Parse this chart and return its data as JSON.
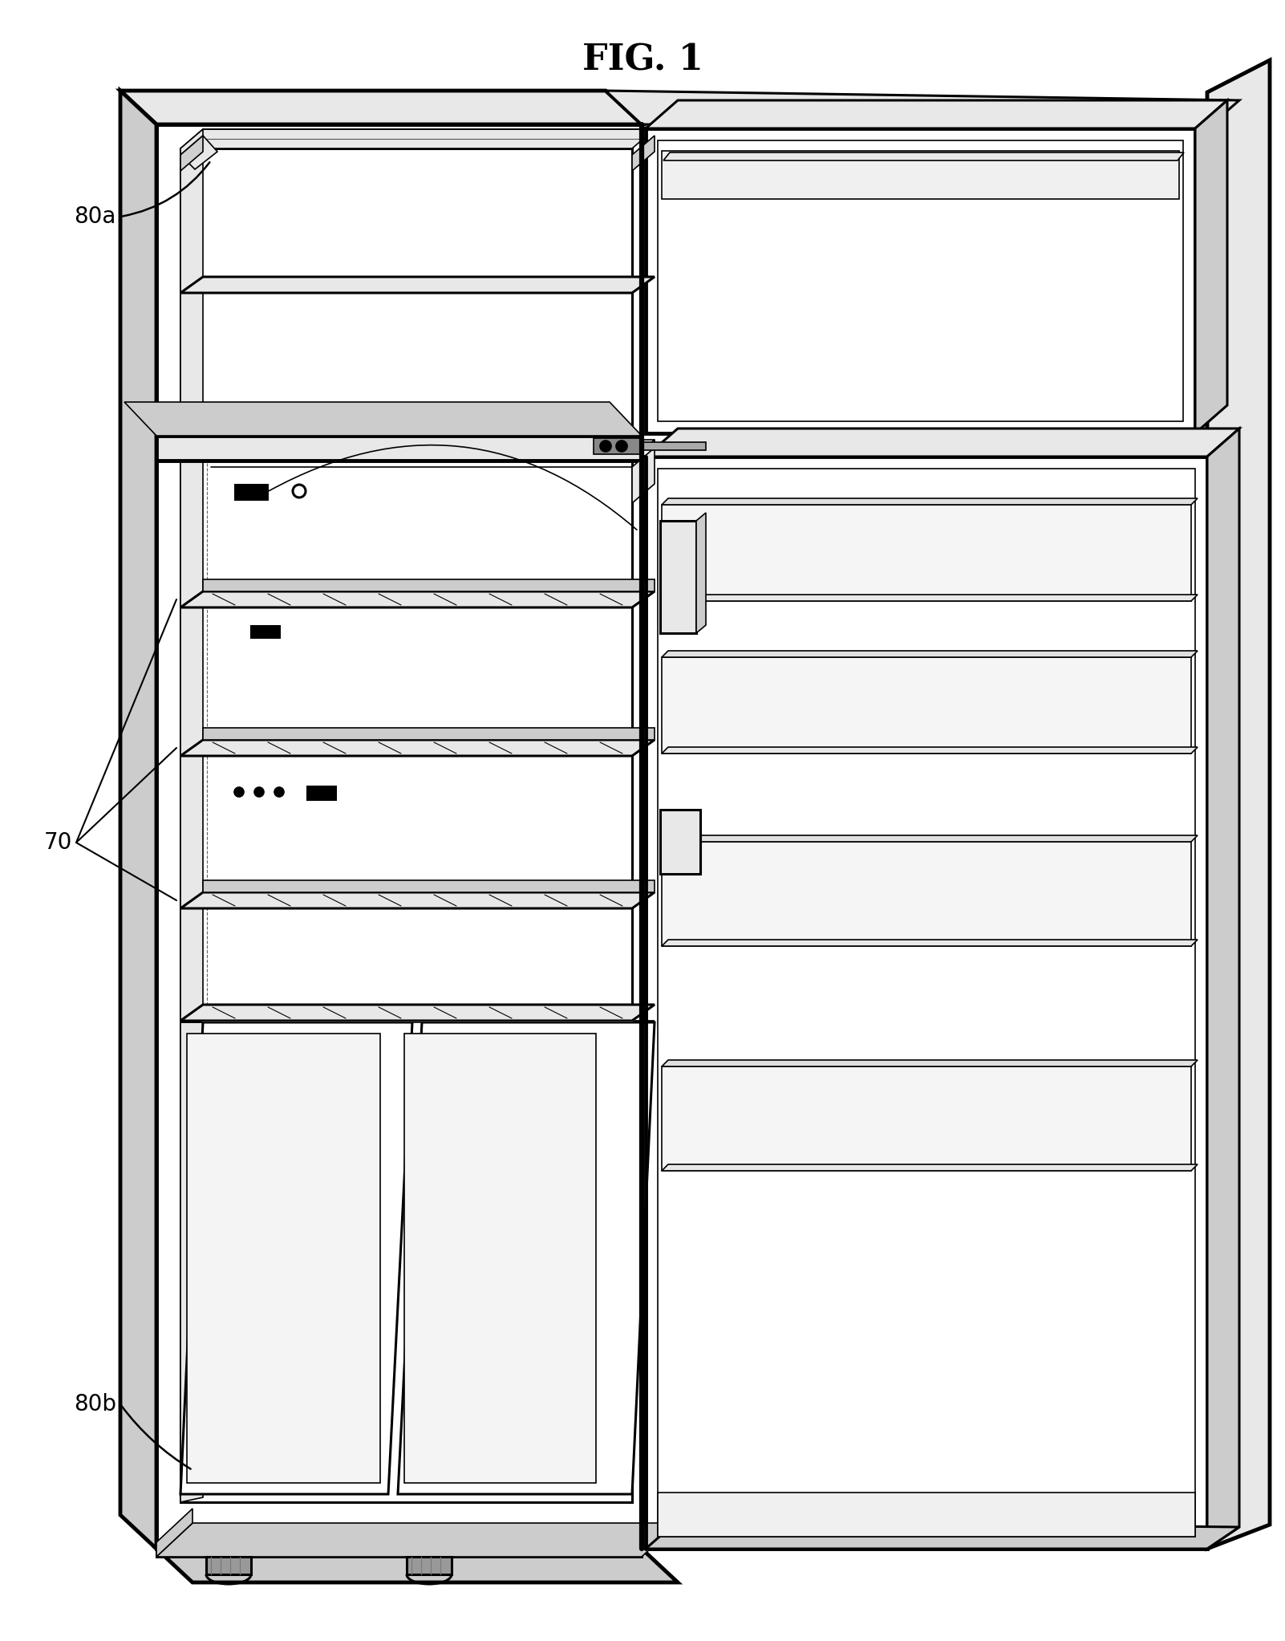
{
  "title": "FIG. 1",
  "title_fontsize": 32,
  "background_color": "#ffffff",
  "label_80a": "80a",
  "label_70": "70",
  "label_80b": "80b",
  "label_fontsize": 20,
  "lw_outer": 3.5,
  "lw_main": 2.2,
  "lw_thin": 1.2,
  "lw_detail": 0.8,
  "gray_light": "#e8e8e8",
  "gray_mid": "#cccccc",
  "gray_dark": "#aaaaaa",
  "black": "#000000",
  "white": "#ffffff"
}
